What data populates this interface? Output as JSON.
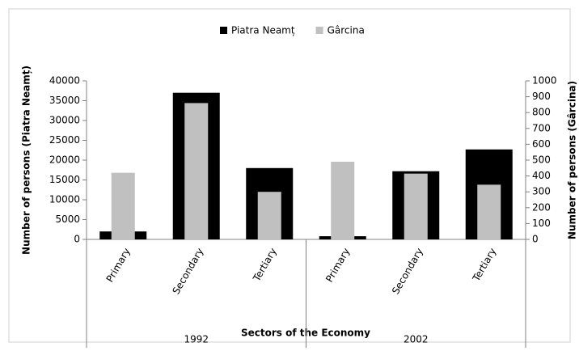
{
  "chart_data": {
    "type": "bar",
    "categories": [
      "Primary",
      "Secondary",
      "Tertiary",
      "Primary",
      "Secondary",
      "Tertiary"
    ],
    "groups": [
      "1992",
      "2002"
    ],
    "x_label": "Sectors of the Economy",
    "y_label": "Number of persons (Piatra Neamț)",
    "y2_label": "Number of persons (Gârcina)",
    "series": [
      {
        "name": "Piatra Neamț",
        "color": "#000000",
        "values": [
          2000,
          37000,
          18000,
          800,
          17200,
          22700
        ]
      },
      {
        "name": "Gârcina",
        "color": "#c0c0c0",
        "axis": "y2",
        "values": [
          420,
          860,
          300,
          490,
          415,
          345
        ]
      }
    ],
    "ylim": [
      0,
      40000
    ],
    "yticks": [
      0,
      5000,
      10000,
      15000,
      20000,
      25000,
      30000,
      35000,
      40000
    ],
    "y2lim": [
      0,
      1000
    ],
    "y2ticks": [
      0,
      100,
      200,
      300,
      400,
      500,
      600,
      700,
      800,
      900,
      1000
    ],
    "legend": "top"
  }
}
